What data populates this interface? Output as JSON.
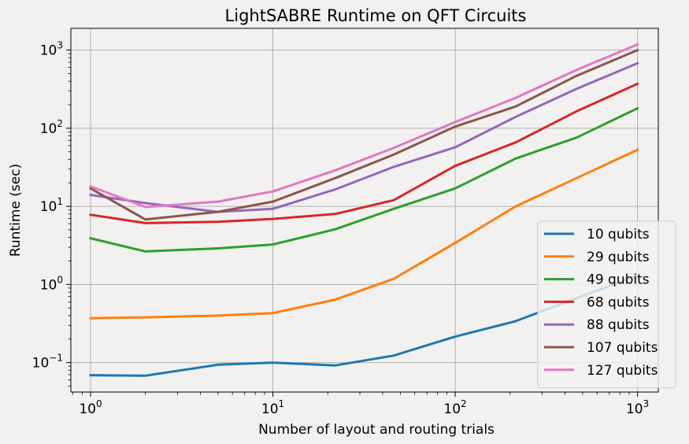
{
  "chart_data": {
    "type": "line",
    "title": "LightSABRE Runtime on QFT Circuits",
    "xlabel": "Number of layout and routing trials",
    "ylabel": "Runtime (sec)",
    "xscale": "log",
    "yscale": "log",
    "xlim": [
      0.78,
      1300
    ],
    "ylim": [
      0.042,
      1900
    ],
    "grid": true,
    "legend_position": "bottom-right",
    "x_ticks": [
      {
        "base": "10",
        "exp": "0",
        "value": 1
      },
      {
        "base": "10",
        "exp": "1",
        "value": 10
      },
      {
        "base": "10",
        "exp": "2",
        "value": 100
      },
      {
        "base": "10",
        "exp": "3",
        "value": 1000
      }
    ],
    "y_ticks": [
      {
        "base": "10",
        "exp": "−1",
        "value": 0.1
      },
      {
        "base": "10",
        "exp": "0",
        "value": 1
      },
      {
        "base": "10",
        "exp": "1",
        "value": 10
      },
      {
        "base": "10",
        "exp": "2",
        "value": 100
      },
      {
        "base": "10",
        "exp": "3",
        "value": 1000
      }
    ],
    "x": [
      1,
      2,
      5,
      10,
      22,
      46,
      100,
      215,
      464,
      1000
    ],
    "series": [
      {
        "name": "10 qubits",
        "color": "#1f77b4",
        "values": [
          0.069,
          0.068,
          0.094,
          0.1,
          0.092,
          0.123,
          0.215,
          0.34,
          0.67,
          1.3
        ]
      },
      {
        "name": "29 qubits",
        "color": "#ff7f0e",
        "values": [
          0.37,
          0.38,
          0.4,
          0.43,
          0.64,
          1.18,
          3.4,
          10,
          23,
          53
        ]
      },
      {
        "name": "49 qubits",
        "color": "#2ca02c",
        "values": [
          3.9,
          2.65,
          2.9,
          3.25,
          5.1,
          9.3,
          17,
          41,
          76,
          180
        ]
      },
      {
        "name": "68 qubits",
        "color": "#d62728",
        "values": [
          7.8,
          6.1,
          6.35,
          6.9,
          8.0,
          12,
          33,
          66,
          165,
          370
        ]
      },
      {
        "name": "88 qubits",
        "color": "#9467bd",
        "values": [
          14,
          11,
          8.5,
          9.3,
          16.5,
          32,
          57,
          140,
          320,
          680
        ]
      },
      {
        "name": "107 qubits",
        "color": "#8c564b",
        "values": [
          17,
          6.8,
          8.5,
          11.5,
          23,
          46,
          105,
          190,
          470,
          1000
        ]
      },
      {
        "name": "127 qubits",
        "color": "#e377c2",
        "values": [
          18,
          9.8,
          11.5,
          15.5,
          29,
          56,
          120,
          245,
          560,
          1180
        ]
      }
    ]
  }
}
